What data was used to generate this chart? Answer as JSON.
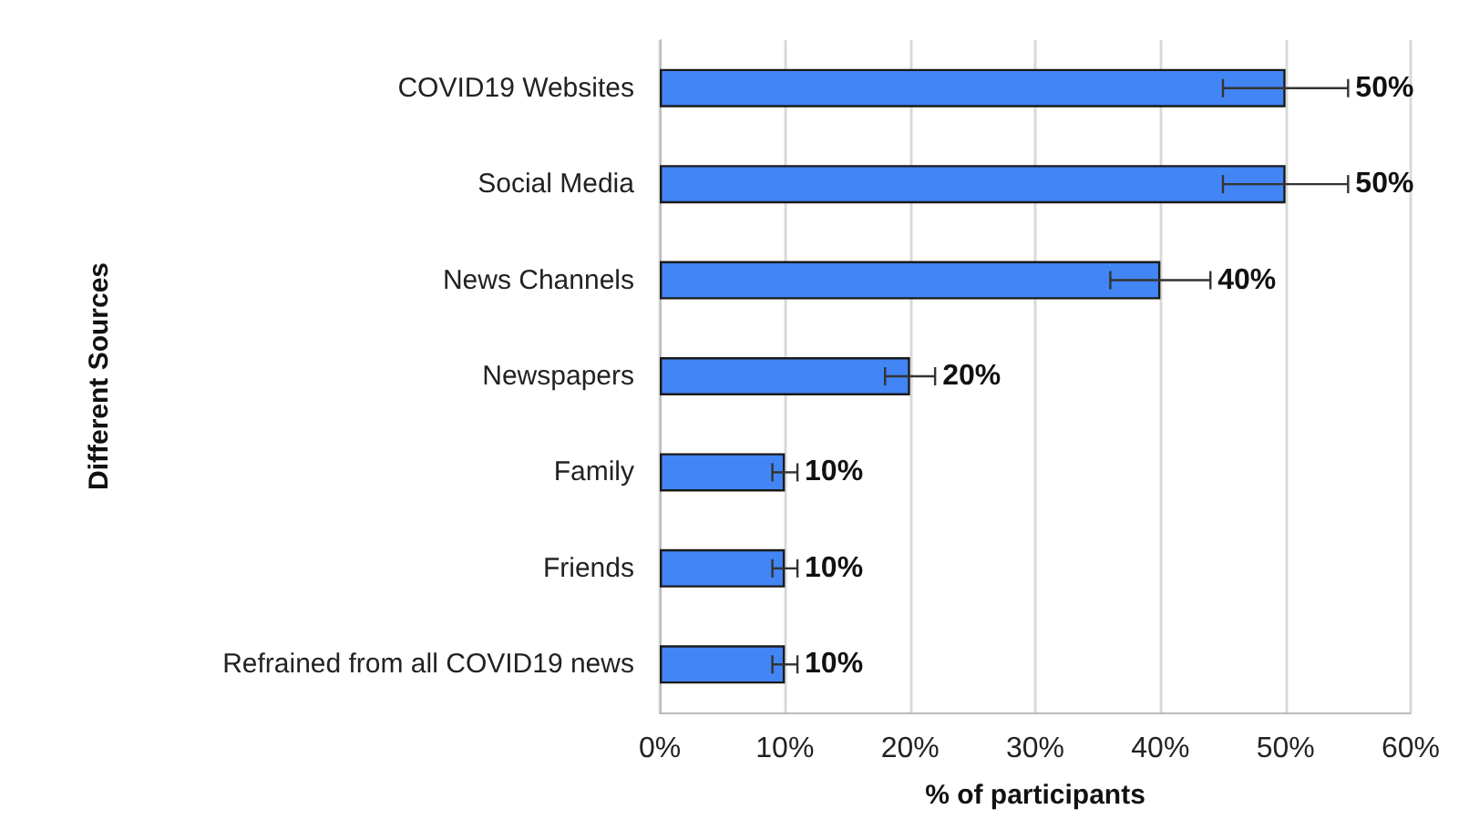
{
  "chart_data": {
    "type": "bar",
    "orientation": "horizontal",
    "xlabel": "% of participants",
    "ylabel": "Different Sources",
    "categories": [
      "COVID19 Websites",
      "Social Media",
      "News Channels",
      "Newspapers",
      "Family",
      "Friends",
      "Refrained from all COVID19 news"
    ],
    "values": [
      50,
      50,
      40,
      20,
      10,
      10,
      10
    ],
    "errors": [
      5,
      5,
      4,
      2,
      1,
      1,
      1
    ],
    "value_labels": [
      "50%",
      "50%",
      "40%",
      "20%",
      "10%",
      "10%",
      "10%"
    ],
    "color": "#4285f4",
    "xlim": [
      0,
      60
    ],
    "xticks": [
      {
        "value": 0,
        "label": "0%"
      },
      {
        "value": 10,
        "label": "10%"
      },
      {
        "value": 20,
        "label": "20%"
      },
      {
        "value": 30,
        "label": "30%"
      },
      {
        "value": 40,
        "label": "40%"
      },
      {
        "value": 50,
        "label": "50%"
      },
      {
        "value": 60,
        "label": "60%"
      }
    ],
    "grid": "x"
  }
}
